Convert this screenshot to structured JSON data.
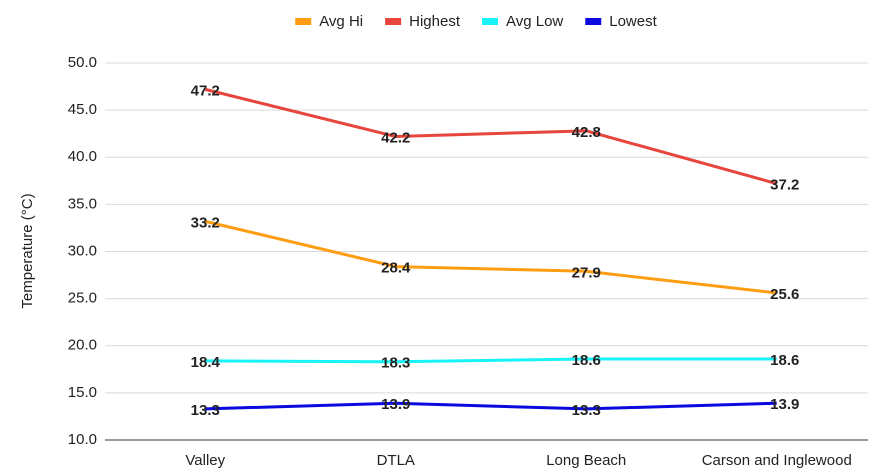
{
  "chart_data": {
    "type": "line",
    "y_label": "Temperature (°C)",
    "categories": [
      "Valley",
      "DTLA",
      "Long Beach",
      "Carson and Inglewood"
    ],
    "series": [
      {
        "name": "Avg Hi",
        "color": "#ff9d12",
        "values": [
          33.2,
          28.4,
          27.9,
          25.6
        ]
      },
      {
        "name": "Highest",
        "color": "#e8453c",
        "values": [
          47.2,
          42.2,
          42.8,
          37.2
        ]
      },
      {
        "name": "Avg Low",
        "color": "#17f3f7",
        "values": [
          18.4,
          18.3,
          18.6,
          18.6
        ]
      },
      {
        "name": "Lowest",
        "color": "#0a0adf",
        "values": [
          13.3,
          13.9,
          13.3,
          13.9
        ]
      }
    ],
    "ylim": [
      10,
      50
    ],
    "yticks": [
      {
        "value": 10,
        "label": "10.0"
      },
      {
        "value": 15,
        "label": "15.0"
      },
      {
        "value": 20,
        "label": "20.0"
      },
      {
        "value": 25,
        "label": "25.0"
      },
      {
        "value": 30,
        "label": "30.0"
      },
      {
        "value": 35,
        "label": "35.0"
      },
      {
        "value": 40,
        "label": "40.0"
      },
      {
        "value": 45,
        "label": "45.0"
      },
      {
        "value": 50,
        "label": "50.0"
      }
    ],
    "grid": true,
    "legend": "top"
  }
}
